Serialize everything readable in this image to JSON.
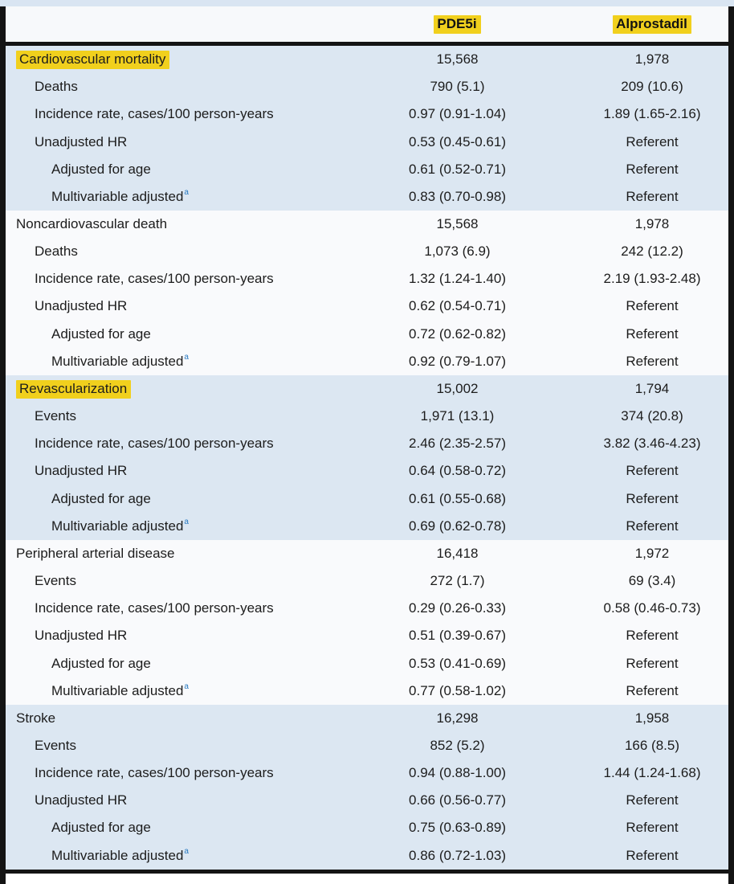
{
  "table_header": {
    "col2": "PDE5i",
    "col3": "Alprostadil"
  },
  "footnote_marker": "a",
  "colors": {
    "highlight_yellow": "#f1d01d",
    "shaded_section_blue": "#dce7f2",
    "plain_section": "#f9fafc",
    "rule_black": "#141414",
    "footnote_blue": "#2879c0"
  },
  "sections": [
    {
      "title": "Cardiovascular mortality",
      "highlighted": true,
      "shaded": true,
      "n_pde5i": "15,568",
      "n_alprostadil": "1,978",
      "rows": [
        {
          "label": "Deaths",
          "indent": 1,
          "footnote": false,
          "pde5i": "790 (5.1)",
          "alprostadil": "209 (10.6)"
        },
        {
          "label": "Incidence rate, cases/100 person-years",
          "indent": 1,
          "footnote": false,
          "pde5i": "0.97 (0.91-1.04)",
          "alprostadil": "1.89 (1.65-2.16)"
        },
        {
          "label": "Unadjusted HR",
          "indent": 1,
          "footnote": false,
          "pde5i": "0.53 (0.45-0.61)",
          "alprostadil": "Referent"
        },
        {
          "label": "Adjusted for age",
          "indent": 2,
          "footnote": false,
          "pde5i": "0.61 (0.52-0.71)",
          "alprostadil": "Referent"
        },
        {
          "label": "Multivariable adjusted",
          "indent": 2,
          "footnote": true,
          "pde5i": "0.83 (0.70-0.98)",
          "alprostadil": "Referent"
        }
      ]
    },
    {
      "title": "Noncardiovascular death",
      "highlighted": false,
      "shaded": false,
      "n_pde5i": "15,568",
      "n_alprostadil": "1,978",
      "rows": [
        {
          "label": "Deaths",
          "indent": 1,
          "footnote": false,
          "pde5i": "1,073 (6.9)",
          "alprostadil": "242 (12.2)"
        },
        {
          "label": "Incidence rate, cases/100 person-years",
          "indent": 1,
          "footnote": false,
          "pde5i": "1.32 (1.24-1.40)",
          "alprostadil": "2.19 (1.93-2.48)"
        },
        {
          "label": "Unadjusted HR",
          "indent": 1,
          "footnote": false,
          "pde5i": "0.62 (0.54-0.71)",
          "alprostadil": "Referent"
        },
        {
          "label": "Adjusted for age",
          "indent": 2,
          "footnote": false,
          "pde5i": "0.72 (0.62-0.82)",
          "alprostadil": "Referent"
        },
        {
          "label": "Multivariable adjusted",
          "indent": 2,
          "footnote": true,
          "pde5i": "0.92 (0.79-1.07)",
          "alprostadil": "Referent"
        }
      ]
    },
    {
      "title": "Revascularization",
      "highlighted": true,
      "shaded": true,
      "n_pde5i": "15,002",
      "n_alprostadil": "1,794",
      "rows": [
        {
          "label": "Events",
          "indent": 1,
          "footnote": false,
          "pde5i": "1,971 (13.1)",
          "alprostadil": "374 (20.8)"
        },
        {
          "label": "Incidence rate, cases/100 person-years",
          "indent": 1,
          "footnote": false,
          "pde5i": "2.46 (2.35-2.57)",
          "alprostadil": "3.82 (3.46-4.23)"
        },
        {
          "label": "Unadjusted HR",
          "indent": 1,
          "footnote": false,
          "pde5i": "0.64 (0.58-0.72)",
          "alprostadil": "Referent"
        },
        {
          "label": "Adjusted for age",
          "indent": 2,
          "footnote": false,
          "pde5i": "0.61 (0.55-0.68)",
          "alprostadil": "Referent"
        },
        {
          "label": "Multivariable adjusted",
          "indent": 2,
          "footnote": true,
          "pde5i": "0.69 (0.62-0.78)",
          "alprostadil": "Referent"
        }
      ]
    },
    {
      "title": "Peripheral arterial disease",
      "highlighted": false,
      "shaded": false,
      "n_pde5i": "16,418",
      "n_alprostadil": "1,972",
      "rows": [
        {
          "label": "Events",
          "indent": 1,
          "footnote": false,
          "pde5i": "272 (1.7)",
          "alprostadil": "69 (3.4)"
        },
        {
          "label": "Incidence rate, cases/100 person-years",
          "indent": 1,
          "footnote": false,
          "pde5i": "0.29 (0.26-0.33)",
          "alprostadil": "0.58 (0.46-0.73)"
        },
        {
          "label": "Unadjusted HR",
          "indent": 1,
          "footnote": false,
          "pde5i": "0.51 (0.39-0.67)",
          "alprostadil": "Referent"
        },
        {
          "label": "Adjusted for age",
          "indent": 2,
          "footnote": false,
          "pde5i": "0.53 (0.41-0.69)",
          "alprostadil": "Referent"
        },
        {
          "label": "Multivariable adjusted",
          "indent": 2,
          "footnote": true,
          "pde5i": "0.77 (0.58-1.02)",
          "alprostadil": "Referent"
        }
      ]
    },
    {
      "title": "Stroke",
      "highlighted": false,
      "shaded": true,
      "n_pde5i": "16,298",
      "n_alprostadil": "1,958",
      "rows": [
        {
          "label": "Events",
          "indent": 1,
          "footnote": false,
          "pde5i": "852 (5.2)",
          "alprostadil": "166 (8.5)"
        },
        {
          "label": "Incidence rate, cases/100 person-years",
          "indent": 1,
          "footnote": false,
          "pde5i": "0.94 (0.88-1.00)",
          "alprostadil": "1.44 (1.24-1.68)"
        },
        {
          "label": "Unadjusted HR",
          "indent": 1,
          "footnote": false,
          "pde5i": "0.66 (0.56-0.77)",
          "alprostadil": "Referent"
        },
        {
          "label": "Adjusted for age",
          "indent": 2,
          "footnote": false,
          "pde5i": "0.75 (0.63-0.89)",
          "alprostadil": "Referent"
        },
        {
          "label": "Multivariable adjusted",
          "indent": 2,
          "footnote": true,
          "pde5i": "0.86 (0.72-1.03)",
          "alprostadil": "Referent"
        }
      ]
    }
  ]
}
